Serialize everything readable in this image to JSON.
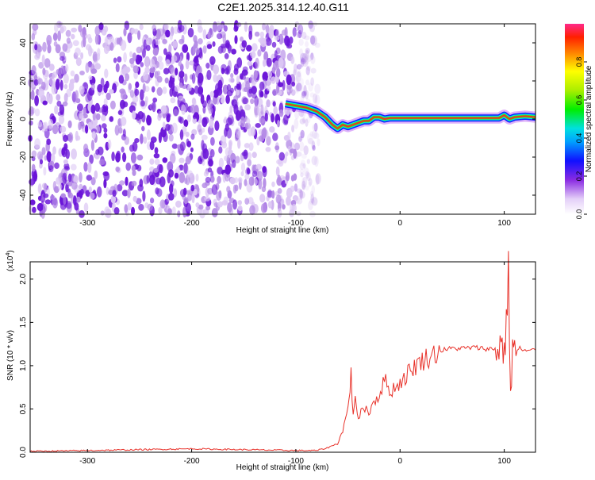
{
  "title": "C2E1.2025.314.12.40.G11",
  "colors": {
    "spectrum_low": "#8a2be2",
    "ridge": "#e8322a",
    "snr_line": "#e8322a",
    "axis": "#000000"
  },
  "chart_data": [
    {
      "type": "heatmap",
      "title": "C2E1.2025.314.12.40.G11",
      "xlabel": "Height of straight line (km)",
      "ylabel": "Frequency (Hz)",
      "xlim": [
        -355,
        130
      ],
      "ylim": [
        -50,
        50
      ],
      "xticks": [
        -300,
        -200,
        -100,
        0,
        100
      ],
      "yticks": [
        -40,
        -20,
        0,
        20,
        40
      ],
      "noise_region": [
        -355,
        -78
      ],
      "ridge": {
        "x": [
          -110,
          -100,
          -90,
          -80,
          -72,
          -65,
          -60,
          -55,
          -50,
          -45,
          -40,
          -35,
          -30,
          -25,
          -20,
          -15,
          -10,
          0,
          20,
          40,
          60,
          80,
          95,
          100,
          105,
          110,
          120,
          130
        ],
        "y": [
          8,
          7,
          6,
          4,
          1,
          -3,
          -5,
          -3,
          -4,
          -3,
          -2,
          -1,
          -1,
          1,
          1,
          0,
          0.5,
          0.5,
          0.5,
          0.5,
          0.5,
          0.5,
          0.5,
          2,
          0,
          1,
          1.5,
          1
        ]
      },
      "colorbar": {
        "label": "Normalized spectral amplitude",
        "range": [
          0,
          1
        ],
        "ticks": [
          "0.0",
          "0.2",
          "0.4",
          "0.6",
          "0.8"
        ]
      }
    },
    {
      "type": "line",
      "xlabel": "Height of straight line (km)",
      "ylabel": "SNR (10 * v/v)",
      "scale_label": "(x10",
      "scale_exp": "4",
      "scale_close": ")",
      "xlim": [
        -355,
        130
      ],
      "ylim": [
        0,
        2.2
      ],
      "xticks": [
        -300,
        -200,
        -100,
        0,
        100
      ],
      "yticks": [
        "0.0",
        "0.5",
        "1.0",
        "1.5",
        "2.0"
      ],
      "series": [
        {
          "name": "SNR",
          "x": [
            -355,
            -300,
            -250,
            -200,
            -150,
            -100,
            -80,
            -70,
            -60,
            -55,
            -50,
            -47,
            -45,
            -43,
            -40,
            -35,
            -30,
            -25,
            -20,
            -15,
            -10,
            -5,
            0,
            10,
            20,
            30,
            40,
            50,
            60,
            70,
            80,
            90,
            95,
            98,
            100,
            102,
            104,
            106,
            108,
            110,
            115,
            120,
            130
          ],
          "y": [
            0.01,
            0.02,
            0.03,
            0.04,
            0.03,
            0.02,
            0.02,
            0.05,
            0.1,
            0.25,
            0.5,
            0.9,
            0.4,
            0.7,
            0.35,
            0.55,
            0.45,
            0.6,
            0.65,
            0.85,
            0.7,
            0.75,
            0.8,
            0.95,
            1.05,
            1.12,
            1.18,
            1.2,
            1.2,
            1.21,
            1.2,
            1.19,
            1.22,
            1.3,
            1.1,
            1.5,
            2.1,
            0.6,
            1.3,
            1.15,
            1.2,
            1.17,
            1.18
          ]
        }
      ]
    }
  ]
}
